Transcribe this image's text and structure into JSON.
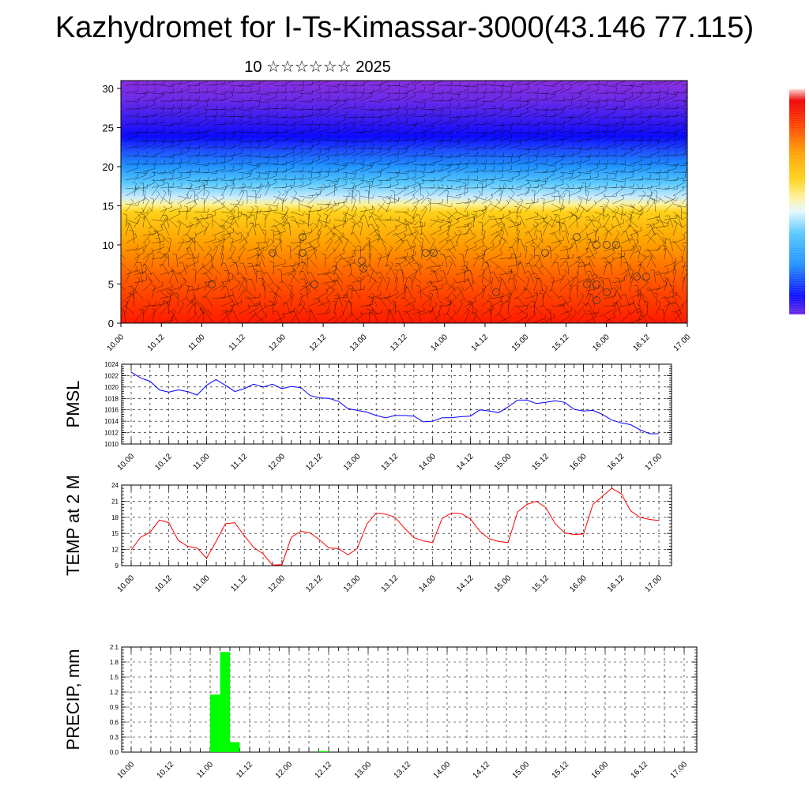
{
  "title": "Kazhydromet for I-Ts-Kimassar-3000(43.146 77.115)",
  "subtitle": "10 ☆☆☆☆☆☆ 2025",
  "time_labels": [
    "10.00",
    "10.12",
    "11.00",
    "11.12",
    "12.00",
    "12.12",
    "13.00",
    "13.12",
    "14.00",
    "14.12",
    "15.00",
    "15.12",
    "16.00",
    "16.12",
    "17.00"
  ],
  "colors": {
    "pmsl_line": "#0000ff",
    "temp_line": "#ff0000",
    "precip_bar": "#00ff00"
  },
  "colorbar_icon": "vertical-colorbar",
  "chart_data": [
    {
      "name_key": "cross_section",
      "type": "heatmap",
      "title": "",
      "ylim": [
        0,
        31
      ],
      "y_ticks": [
        0,
        5,
        10,
        15,
        20,
        25,
        30
      ],
      "x": [
        "10.00",
        "10.12",
        "11.00",
        "11.12",
        "12.00",
        "12.12",
        "13.00",
        "13.12",
        "14.00",
        "14.12",
        "15.00",
        "15.12",
        "16.00",
        "16.12",
        "17.00"
      ],
      "notes": "Colored field (red at bottom, yellow near 15, blue near 22-25, violet at top) overlaid with wind barbs"
    },
    {
      "name_key": "pmsl",
      "type": "line",
      "ylabel": "PMSL",
      "ylim": [
        1010,
        1024
      ],
      "y_ticks": [
        1010,
        1012,
        1014,
        1016,
        1018,
        1020,
        1022,
        1024
      ],
      "x_hours": [
        0,
        3,
        6,
        9,
        12,
        15,
        18,
        21,
        24,
        27,
        30,
        33,
        36,
        39,
        42,
        45,
        48,
        51,
        54,
        57,
        60,
        63,
        66,
        69,
        72,
        75,
        78,
        81,
        84,
        87,
        90,
        93,
        96,
        99,
        102,
        105,
        108,
        111,
        114,
        117,
        120,
        123,
        126,
        129,
        132,
        135,
        138,
        141,
        144,
        147,
        150,
        153,
        156,
        159,
        162,
        165,
        168
      ],
      "values": [
        1022.6,
        1021.6,
        1021.0,
        1019.5,
        1019.1,
        1019.5,
        1019.2,
        1018.6,
        1020.3,
        1021.3,
        1020.3,
        1019.2,
        1019.7,
        1020.5,
        1020.0,
        1020.5,
        1019.7,
        1020.1,
        1019.9,
        1018.5,
        1018.1,
        1018.0,
        1017.5,
        1016.2,
        1015.9,
        1015.6,
        1015.0,
        1014.6,
        1015.0,
        1015.0,
        1014.9,
        1013.9,
        1014.0,
        1014.6,
        1014.6,
        1014.8,
        1014.9,
        1016.0,
        1015.8,
        1015.5,
        1016.5,
        1017.7,
        1017.7,
        1017.1,
        1017.3,
        1017.6,
        1017.3,
        1016.1,
        1015.8,
        1015.9,
        1015.2,
        1014.2,
        1013.7,
        1013.4,
        1012.5,
        1011.8,
        1011.8
      ]
    },
    {
      "name_key": "temp",
      "type": "line",
      "ylabel": "TEMP at 2 M",
      "ylim": [
        9,
        24
      ],
      "y_ticks": [
        9,
        12,
        15,
        18,
        21,
        24
      ],
      "x_hours": [
        0,
        3,
        6,
        9,
        12,
        15,
        18,
        21,
        24,
        27,
        30,
        33,
        36,
        39,
        42,
        45,
        48,
        51,
        54,
        57,
        60,
        63,
        66,
        69,
        72,
        75,
        78,
        81,
        84,
        87,
        90,
        93,
        96,
        99,
        102,
        105,
        108,
        111,
        114,
        117,
        120,
        123,
        126,
        129,
        132,
        135,
        138,
        141,
        144,
        147,
        150,
        153,
        156,
        159,
        162,
        165,
        168
      ],
      "values": [
        11.9,
        14.3,
        15.2,
        17.5,
        17.0,
        13.7,
        12.6,
        12.3,
        10.4,
        13.5,
        16.8,
        17.0,
        14.6,
        12.4,
        11.2,
        9.1,
        9.2,
        14.3,
        15.4,
        15.1,
        13.8,
        12.3,
        12.2,
        11.0,
        12.2,
        16.7,
        18.8,
        18.6,
        18.0,
        16.0,
        14.2,
        13.6,
        13.3,
        17.8,
        18.8,
        18.7,
        17.7,
        15.4,
        14.0,
        13.5,
        13.3,
        19.0,
        20.4,
        21.0,
        19.8,
        16.8,
        15.1,
        14.8,
        14.9,
        20.4,
        21.9,
        23.4,
        22.4,
        19.2,
        18.0,
        17.6,
        17.4
      ]
    },
    {
      "name_key": "precip",
      "type": "bar",
      "ylabel": "PRECIP, mm",
      "ylim": [
        0,
        2.1
      ],
      "y_ticks": [
        "0.0",
        "0.3",
        "0.6",
        "0.9",
        "1.2",
        "1.5",
        "1.8",
        "2.1"
      ],
      "bars": [
        {
          "start_hour": 24,
          "end_hour": 27,
          "value": 1.15
        },
        {
          "start_hour": 27,
          "end_hour": 30,
          "value": 2.0
        },
        {
          "start_hour": 30,
          "end_hour": 33,
          "value": 0.2
        },
        {
          "start_hour": 57,
          "end_hour": 60,
          "value": 0.02
        }
      ]
    }
  ]
}
